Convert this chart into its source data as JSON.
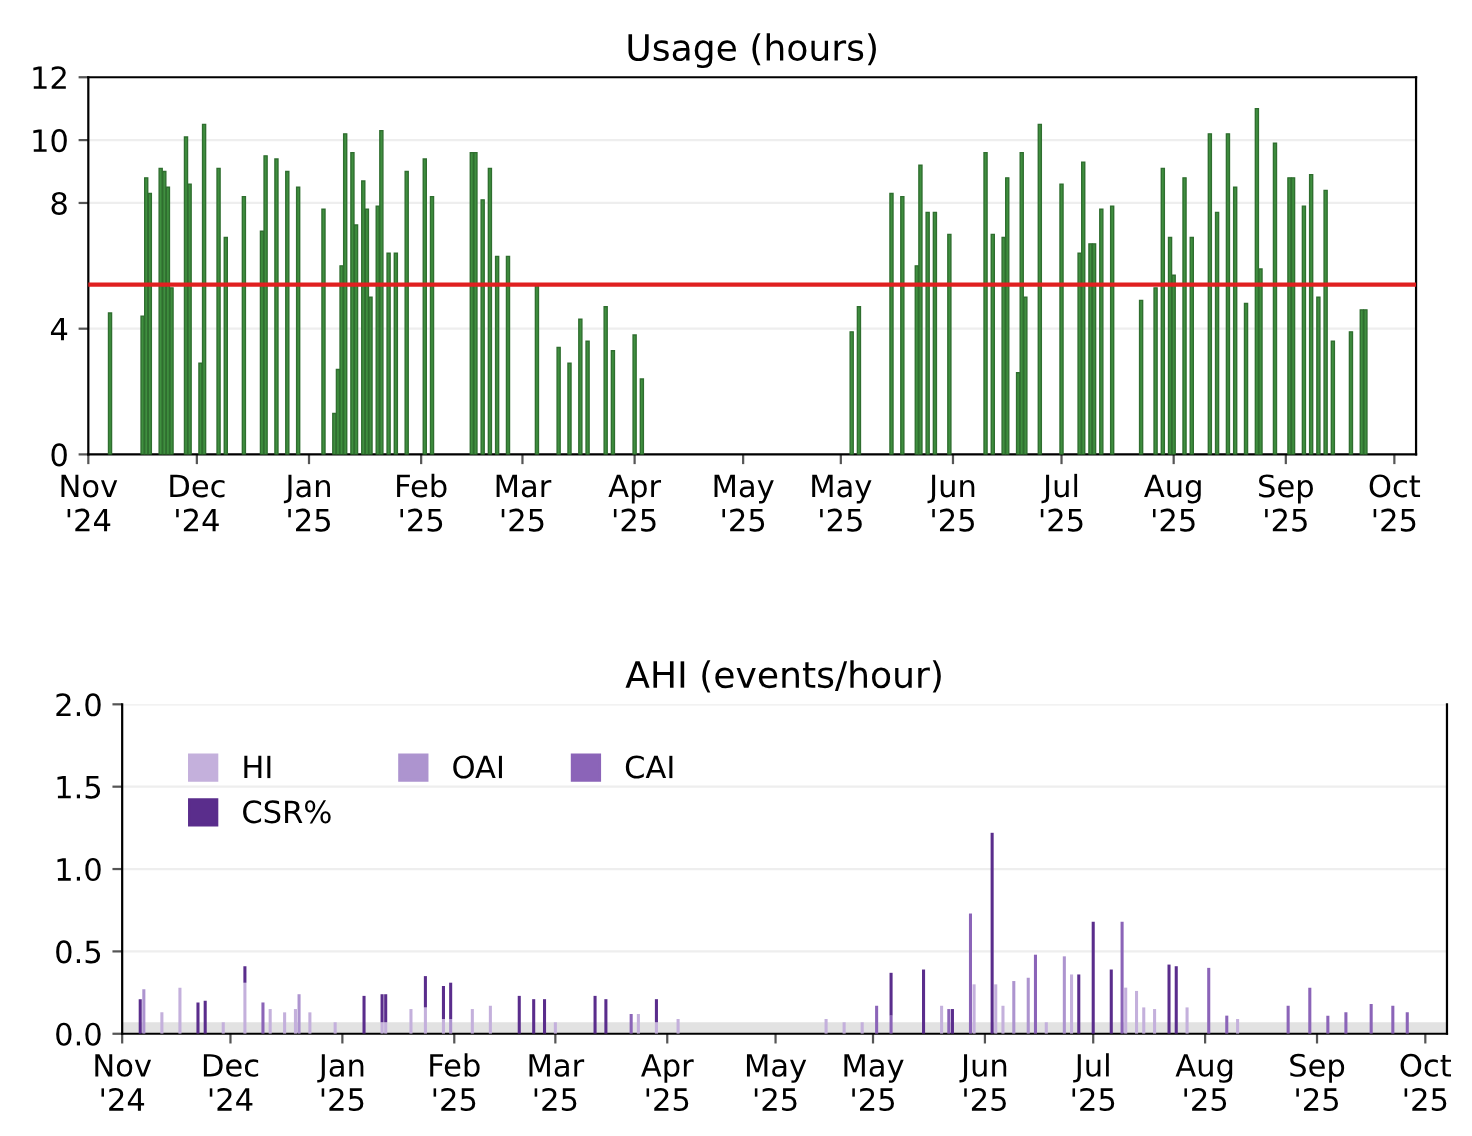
{
  "chart_data": [
    {
      "type": "bar",
      "title": "Usage (hours)",
      "color": "#3f8f3f",
      "x": [
        "2024-11-07",
        "2024-11-16",
        "2024-11-17",
        "2024-11-18",
        "2024-11-21",
        "2024-11-22",
        "2024-11-23",
        "2024-11-24",
        "2024-11-28",
        "2024-11-29",
        "2024-12-02",
        "2024-12-03",
        "2024-12-07",
        "2024-12-09",
        "2024-12-14",
        "2024-12-19",
        "2024-12-20",
        "2024-12-23",
        "2024-12-26",
        "2024-12-29",
        "2025-01-05",
        "2025-01-08",
        "2025-01-09",
        "2025-01-10",
        "2025-01-11",
        "2025-01-13",
        "2025-01-14",
        "2025-01-16",
        "2025-01-17",
        "2025-01-18",
        "2025-01-20",
        "2025-01-21",
        "2025-01-23",
        "2025-01-25",
        "2025-01-28",
        "2025-02-02",
        "2025-02-04",
        "2025-02-15",
        "2025-02-16",
        "2025-02-18",
        "2025-02-20",
        "2025-02-22",
        "2025-02-25",
        "2025-03-05",
        "2025-03-11",
        "2025-03-14",
        "2025-03-17",
        "2025-03-19",
        "2025-03-24",
        "2025-03-26",
        "2025-04-01",
        "2025-04-03",
        "2025-05-31",
        "2025-06-02",
        "2025-06-11",
        "2025-06-14",
        "2025-06-18",
        "2025-06-19",
        "2025-06-21",
        "2025-06-23",
        "2025-06-27",
        "2025-07-07",
        "2025-07-09",
        "2025-07-12",
        "2025-07-13",
        "2025-07-16",
        "2025-07-17",
        "2025-07-18",
        "2025-07-22",
        "2025-07-28",
        "2025-08-02",
        "2025-08-03",
        "2025-08-05",
        "2025-08-06",
        "2025-08-08",
        "2025-08-11",
        "2025-08-19",
        "2025-08-23",
        "2025-08-25",
        "2025-08-27",
        "2025-08-28",
        "2025-08-31",
        "2025-09-02",
        "2025-09-07",
        "2025-09-09",
        "2025-09-12",
        "2025-09-14",
        "2025-09-17",
        "2025-09-20",
        "2025-09-21",
        "2025-09-25",
        "2025-09-29",
        "2025-09-30",
        "2025-10-03",
        "2025-10-05",
        "2025-10-07",
        "2025-10-09",
        "2025-10-11",
        "2025-10-16",
        "2025-10-19",
        "2025-10-20"
      ],
      "values": [
        4.5,
        4.4,
        8.8,
        8.3,
        9.1,
        9.0,
        8.5,
        5.3,
        10.1,
        8.6,
        2.9,
        10.5,
        9.1,
        6.9,
        8.2,
        7.1,
        9.5,
        9.4,
        9.0,
        8.5,
        7.8,
        1.3,
        2.7,
        6.0,
        10.2,
        9.6,
        7.3,
        8.7,
        7.8,
        5.0,
        7.9,
        10.3,
        6.4,
        6.4,
        9.0,
        9.4,
        8.2,
        9.6,
        9.6,
        8.1,
        9.1,
        6.3,
        6.3,
        5.4,
        3.4,
        2.9,
        4.3,
        3.6,
        4.7,
        3.3,
        3.8,
        2.4,
        3.9,
        4.7,
        8.3,
        8.2,
        6.0,
        9.2,
        7.7,
        7.7,
        7.0,
        9.6,
        7.0,
        6.9,
        8.8,
        2.6,
        9.6,
        5.0,
        10.5,
        8.6,
        6.4,
        9.3,
        6.7,
        6.7,
        7.8,
        7.9,
        4.9,
        5.3,
        9.1,
        6.9,
        5.7,
        8.8,
        6.9,
        10.2,
        7.7,
        10.2,
        8.5,
        4.8,
        11.0,
        5.9,
        9.9,
        8.8,
        8.8,
        7.9,
        8.9,
        5.0,
        8.4,
        3.6,
        3.9,
        4.6,
        4.6
      ],
      "xlim": [
        "2024-11-01",
        "2025-11-03"
      ],
      "xticks": [
        {
          "value": "2024-11-01",
          "label": "Nov\n'24"
        },
        {
          "value": "2024-12-01",
          "label": "Dec\n'24"
        },
        {
          "value": "2025-01-01",
          "label": "Jan\n'25"
        },
        {
          "value": "2025-02-01",
          "label": "Feb\n'25"
        },
        {
          "value": "2025-03-01",
          "label": "Mar\n'25"
        },
        {
          "value": "2025-04-01",
          "label": "Apr\n'25"
        },
        {
          "value": "2025-05-01",
          "label": "May\n'25"
        },
        {
          "value": "2025-05-28",
          "label": "May\n'25"
        },
        {
          "value": "2025-06-28",
          "label": "Jun\n'25"
        },
        {
          "value": "2025-07-28",
          "label": "Jul\n'25"
        },
        {
          "value": "2025-08-28",
          "label": "Aug\n'25"
        },
        {
          "value": "2025-09-28",
          "label": "Sep\n'25"
        },
        {
          "value": "2025-10-28",
          "label": "Oct\n'25"
        }
      ],
      "ylim": [
        0,
        12
      ],
      "yticks": [
        0,
        4,
        8,
        10,
        12
      ],
      "ref_lines": [
        {
          "axis": "y",
          "value": 5.4,
          "color": "#e02020"
        }
      ],
      "grid": "y"
    },
    {
      "type": "bar",
      "title": "AHI (events/hour)",
      "stacked": true,
      "legend": "top left",
      "x": [
        "2024-11-06",
        "2024-11-07",
        "2024-11-12",
        "2024-11-17",
        "2024-11-22",
        "2024-11-24",
        "2024-11-29",
        "2024-12-05",
        "2024-12-10",
        "2024-12-12",
        "2024-12-16",
        "2024-12-19",
        "2024-12-20",
        "2024-12-23",
        "2024-12-30",
        "2025-01-07",
        "2025-01-12",
        "2025-01-13",
        "2025-01-20",
        "2025-01-24",
        "2025-01-29",
        "2025-01-31",
        "2025-02-06",
        "2025-02-11",
        "2025-02-19",
        "2025-02-23",
        "2025-02-26",
        "2025-03-01",
        "2025-03-12",
        "2025-03-15",
        "2025-03-22",
        "2025-03-24",
        "2025-03-29",
        "2025-04-04",
        "2025-05-15",
        "2025-05-20",
        "2025-05-25",
        "2025-05-29",
        "2025-06-02",
        "2025-06-11",
        "2025-06-16",
        "2025-06-18",
        "2025-06-19",
        "2025-06-24",
        "2025-06-25",
        "2025-06-30",
        "2025-07-01",
        "2025-07-03",
        "2025-07-06",
        "2025-07-10",
        "2025-07-12",
        "2025-07-15",
        "2025-07-20",
        "2025-07-22",
        "2025-07-24",
        "2025-07-28",
        "2025-08-02",
        "2025-08-05",
        "2025-08-06",
        "2025-08-09",
        "2025-08-11",
        "2025-08-14",
        "2025-08-18",
        "2025-08-20",
        "2025-08-23",
        "2025-08-29",
        "2025-09-03",
        "2025-09-06",
        "2025-09-20",
        "2025-09-26",
        "2025-10-01",
        "2025-10-06",
        "2025-10-13",
        "2025-10-19",
        "2025-10-23"
      ],
      "series": [
        {
          "name": "HI",
          "color": "#c4b0dc",
          "values": [
            null,
            null,
            0.13,
            0.28,
            null,
            null,
            0.07,
            0.31,
            null,
            0.15,
            0.13,
            0.15,
            null,
            0.13,
            0.07,
            null,
            0.07,
            0.07,
            0.15,
            0.16,
            0.09,
            null,
            0.15,
            0.17,
            null,
            null,
            null,
            0.07,
            null,
            null,
            null,
            0.12,
            0.07,
            0.09,
            0.09,
            0.07,
            0.07,
            null,
            null,
            null,
            0.17,
            null,
            null,
            null,
            0.3,
            null,
            0.3,
            0.17,
            null,
            null,
            null,
            0.07,
            null,
            0.36,
            null,
            null,
            null,
            null,
            0.28,
            0.26,
            0.16,
            0.15,
            null,
            null,
            0.16,
            null,
            null,
            0.09,
            null,
            null,
            null,
            null,
            null,
            null,
            null
          ]
        },
        {
          "name": "OAI",
          "color": "#ad94cf",
          "values": [
            null,
            0.27,
            null,
            null,
            null,
            null,
            null,
            null,
            null,
            null,
            null,
            null,
            0.24,
            null,
            null,
            null,
            null,
            null,
            null,
            null,
            null,
            0.09,
            null,
            null,
            null,
            null,
            null,
            null,
            null,
            null,
            null,
            null,
            null,
            null,
            null,
            null,
            null,
            null,
            null,
            null,
            null,
            null,
            null,
            null,
            null,
            null,
            null,
            null,
            0.32,
            0.34,
            null,
            null,
            0.47,
            null,
            null,
            null,
            null,
            null,
            null,
            null,
            null,
            null,
            null,
            null,
            null,
            null,
            null,
            null,
            null,
            null,
            null,
            null,
            null,
            null,
            null
          ]
        },
        {
          "name": "CAI",
          "color": "#8b64b8",
          "values": [
            null,
            null,
            null,
            null,
            null,
            null,
            null,
            null,
            0.19,
            null,
            null,
            null,
            null,
            null,
            null,
            null,
            null,
            null,
            null,
            null,
            null,
            null,
            null,
            null,
            null,
            null,
            null,
            null,
            null,
            null,
            0.12,
            null,
            null,
            null,
            null,
            null,
            null,
            0.17,
            0.11,
            null,
            null,
            0.15,
            null,
            0.73,
            null,
            null,
            null,
            null,
            null,
            null,
            0.48,
            null,
            null,
            null,
            null,
            null,
            null,
            0.68,
            null,
            null,
            null,
            null,
            null,
            null,
            null,
            0.4,
            0.11,
            null,
            0.17,
            0.28,
            0.11,
            0.13,
            0.18,
            0.17,
            0.13
          ]
        },
        {
          "name": "CSR%",
          "color": "#5a2d8c",
          "values": [
            0.21,
            null,
            null,
            null,
            0.19,
            0.2,
            null,
            0.1,
            null,
            null,
            null,
            null,
            null,
            null,
            null,
            0.23,
            0.17,
            0.17,
            null,
            0.19,
            0.2,
            0.22,
            null,
            null,
            0.23,
            0.21,
            0.21,
            null,
            0.23,
            0.21,
            null,
            null,
            0.14,
            null,
            null,
            null,
            null,
            null,
            0.26,
            0.39,
            null,
            null,
            0.15,
            null,
            null,
            1.22,
            null,
            null,
            null,
            null,
            null,
            null,
            null,
            null,
            0.36,
            0.68,
            0.39,
            null,
            null,
            null,
            null,
            null,
            0.42,
            0.41,
            null,
            null,
            null,
            null,
            null,
            null,
            null,
            null,
            null,
            null,
            null
          ]
        }
      ],
      "xlim": [
        "2024-11-01",
        "2025-11-03"
      ],
      "xticks": [
        {
          "value": "2024-11-01",
          "label": "Nov\n'24"
        },
        {
          "value": "2024-12-01",
          "label": "Dec\n'24"
        },
        {
          "value": "2025-01-01",
          "label": "Jan\n'25"
        },
        {
          "value": "2025-02-01",
          "label": "Feb\n'25"
        },
        {
          "value": "2025-03-01",
          "label": "Mar\n'25"
        },
        {
          "value": "2025-04-01",
          "label": "Apr\n'25"
        },
        {
          "value": "2025-05-01",
          "label": "May\n'25"
        },
        {
          "value": "2025-05-28",
          "label": "May\n'25"
        },
        {
          "value": "2025-06-28",
          "label": "Jun\n'25"
        },
        {
          "value": "2025-07-28",
          "label": "Jul\n'25"
        },
        {
          "value": "2025-08-28",
          "label": "Aug\n'25"
        },
        {
          "value": "2025-09-28",
          "label": "Sep\n'25"
        },
        {
          "value": "2025-10-28",
          "label": "Oct\n'25"
        }
      ],
      "ylim": [
        0,
        2
      ],
      "yticks": [
        {
          "value": 0,
          "label": "0.0"
        },
        {
          "value": 0.5,
          "label": "0.5"
        },
        {
          "value": 1,
          "label": "1.0"
        },
        {
          "value": 1.5,
          "label": "1.5"
        },
        {
          "value": 2,
          "label": "2.0"
        }
      ],
      "bands": [
        {
          "axis": "y",
          "from": 0,
          "to": 0.07,
          "color": "#e2e2e2"
        }
      ],
      "grid": "y"
    }
  ]
}
